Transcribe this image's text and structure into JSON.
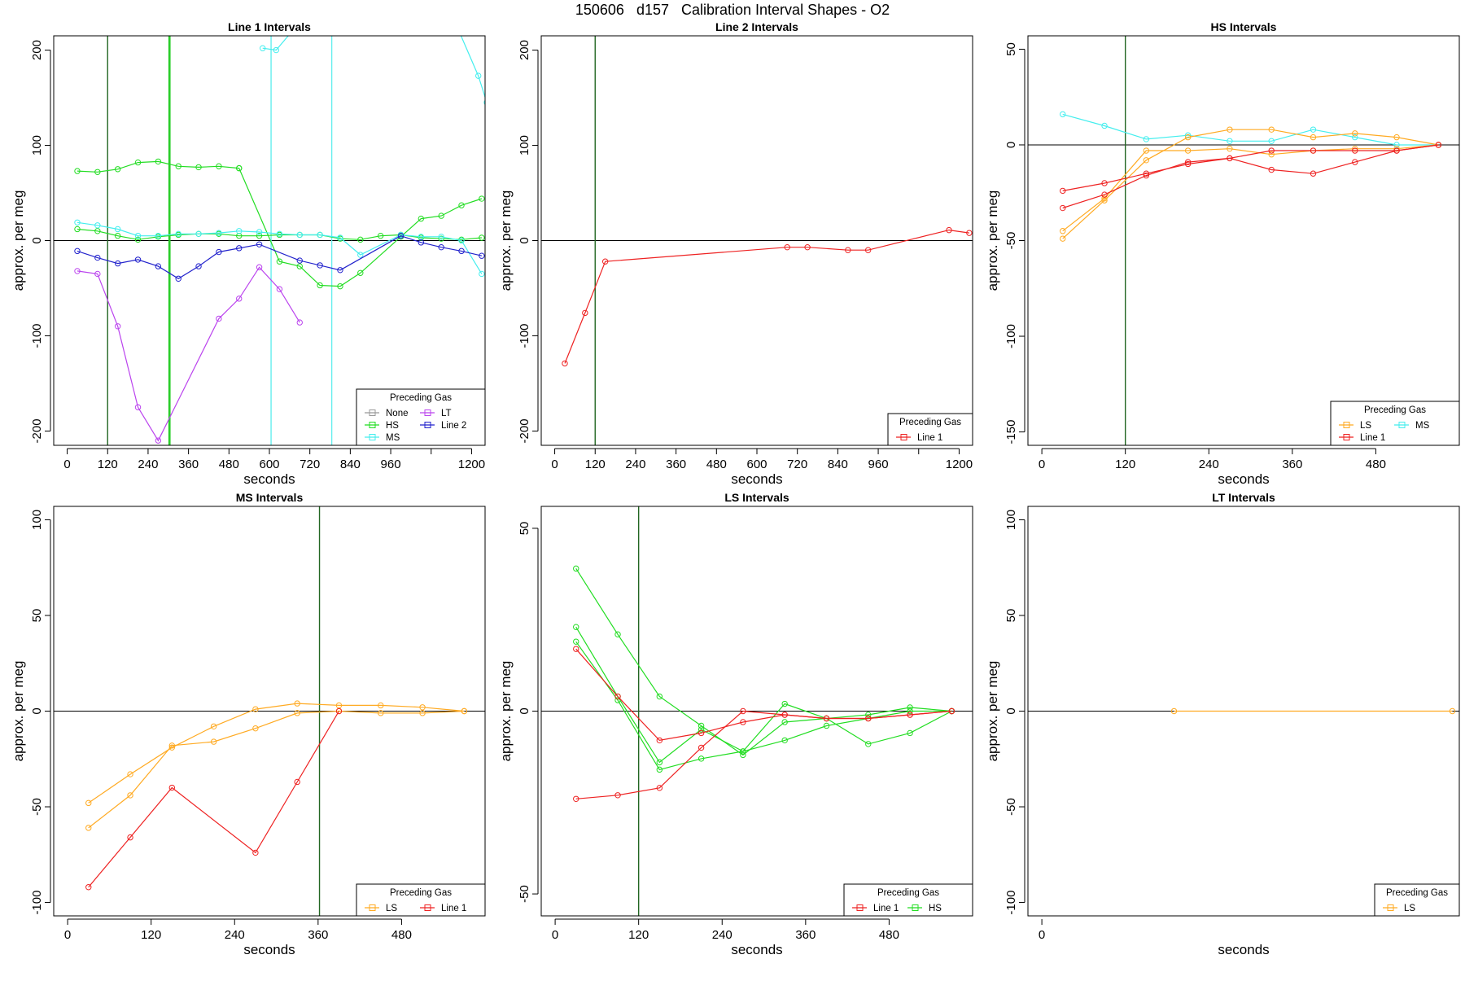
{
  "main_title": "150606   d157   Calibration Interval Shapes - O2",
  "colors": {
    "None": "#999999",
    "HS": "#22dd22",
    "MS": "#44eeee",
    "LT": "#bb44ee",
    "Line 2": "#2222cc",
    "Line 1": "#ee2222",
    "LS": "#ffaa22",
    "vline_dark": "#226622",
    "vline_green": "#22cc22",
    "vline_cyan": "#66eeee"
  },
  "chart_data": [
    {
      "type": "line",
      "title": "Line 1 Intervals",
      "xlabel": "seconds",
      "ylabel": "approx. per meg",
      "xlim": [
        -40,
        1240
      ],
      "ylim": [
        -215,
        215
      ],
      "xticks": [
        "0",
        "120",
        "240",
        "360",
        "480",
        "600",
        "720",
        "840",
        "960",
        "",
        "1200"
      ],
      "xtick_values": [
        0,
        120,
        240,
        360,
        480,
        600,
        720,
        840,
        960,
        1080,
        1200
      ],
      "yticks": [
        "-200",
        "-100",
        "0",
        "100",
        "200"
      ],
      "ytick_values": [
        -200,
        -100,
        0,
        100,
        200
      ],
      "hlines": [
        0
      ],
      "vlines": [
        {
          "x": 120,
          "color": "vline_dark"
        },
        {
          "x": 302,
          "color": "vline_green"
        },
        {
          "x": 305,
          "color": "vline_green"
        },
        {
          "x": 605,
          "color": "vline_cyan"
        },
        {
          "x": 785,
          "color": "vline_cyan"
        }
      ],
      "legend": {
        "title": "Preceding Gas",
        "position": "bottom-right",
        "columns": 2,
        "entries": [
          "None",
          "HS",
          "MS",
          "LT",
          "Line 2"
        ]
      },
      "series": [
        {
          "name": "HS",
          "x": [
            30,
            90,
            150,
            210,
            270,
            330,
            390,
            450,
            510
          ],
          "y": [
            73,
            72,
            75,
            82,
            83,
            78,
            77,
            78,
            76
          ]
        },
        {
          "name": "HS",
          "x": [
            30,
            90,
            150,
            210,
            270,
            330,
            390,
            450,
            510,
            570,
            630,
            690,
            750,
            810,
            870,
            930,
            990,
            1050,
            1110,
            1170,
            1230
          ],
          "y": [
            12,
            10,
            5,
            1,
            4,
            6,
            7,
            7,
            5,
            5,
            6,
            6,
            6,
            2,
            1,
            5,
            6,
            3,
            2,
            1,
            3
          ]
        },
        {
          "name": "HS",
          "x": [
            510,
            630,
            690,
            750,
            810,
            870,
            990,
            1050,
            1110,
            1170,
            1230
          ],
          "y": [
            76,
            -22,
            -27,
            -47,
            -48,
            -34,
            4,
            23,
            26,
            37,
            44
          ]
        },
        {
          "name": "MS",
          "x": [
            30,
            90,
            150,
            210,
            270,
            330,
            390,
            450,
            510,
            570,
            630,
            690,
            750,
            810,
            870,
            990,
            1050,
            1110,
            1170,
            1230
          ],
          "y": [
            19,
            16,
            12,
            5,
            5,
            7,
            7,
            8,
            10,
            9,
            7,
            6,
            6,
            3,
            -15,
            6,
            4,
            4,
            0,
            -35
          ]
        },
        {
          "name": "MS",
          "x": [
            580,
            620,
            680,
            740
          ],
          "y": [
            202,
            200,
            225,
            225
          ]
        },
        {
          "name": "MS",
          "x": [
            1160,
            1220,
            1245
          ],
          "y": [
            222,
            173,
            145
          ]
        },
        {
          "name": "LT",
          "x": [
            30,
            90,
            150,
            210,
            270,
            450,
            510,
            570,
            630,
            690
          ],
          "y": [
            -32,
            -35,
            -90,
            -175,
            -210,
            -82,
            -61,
            -28,
            -51,
            -86
          ]
        },
        {
          "name": "Line 2",
          "x": [
            30,
            90,
            150,
            210,
            270,
            330,
            390,
            450,
            510,
            570,
            690,
            750,
            810,
            990,
            1050,
            1110,
            1170,
            1230
          ],
          "y": [
            -11,
            -18,
            -24,
            -20,
            -27,
            -40,
            -27,
            -12,
            -8,
            -4,
            -21,
            -26,
            -31,
            5,
            -2,
            -7,
            -11,
            -16
          ]
        }
      ]
    },
    {
      "type": "line",
      "title": "Line 2 Intervals",
      "xlabel": "seconds",
      "ylabel": "approx. per meg",
      "xlim": [
        -40,
        1240
      ],
      "ylim": [
        -215,
        215
      ],
      "xticks": [
        "0",
        "120",
        "240",
        "360",
        "480",
        "600",
        "720",
        "840",
        "960",
        "",
        "1200"
      ],
      "xtick_values": [
        0,
        120,
        240,
        360,
        480,
        600,
        720,
        840,
        960,
        1080,
        1200
      ],
      "yticks": [
        "-200",
        "-100",
        "0",
        "100",
        "200"
      ],
      "ytick_values": [
        -200,
        -100,
        0,
        100,
        200
      ],
      "hlines": [
        0
      ],
      "vlines": [
        {
          "x": 120,
          "color": "vline_dark"
        }
      ],
      "legend": {
        "title": "Preceding Gas",
        "position": "bottom-right",
        "columns": 1,
        "entries": [
          "Line 1"
        ]
      },
      "series": [
        {
          "name": "Line 1",
          "x": [
            30,
            90,
            150,
            690,
            750,
            870,
            930,
            1170,
            1230
          ],
          "y": [
            -129,
            -76,
            -22,
            -7,
            -7,
            -10,
            -10,
            11,
            8
          ]
        }
      ]
    },
    {
      "type": "line",
      "title": "HS Intervals",
      "xlabel": "seconds",
      "ylabel": "approx. per meg",
      "xlim": [
        -20,
        600
      ],
      "ylim": [
        -157,
        57
      ],
      "xticks": [
        "0",
        "120",
        "240",
        "360",
        "480"
      ],
      "xtick_values": [
        0,
        120,
        240,
        360,
        480
      ],
      "yticks": [
        "-150",
        "-100",
        "-50",
        "0",
        "50"
      ],
      "ytick_values": [
        -150,
        -100,
        -50,
        0,
        50
      ],
      "hlines": [
        0
      ],
      "vlines": [
        {
          "x": 120,
          "color": "vline_dark"
        }
      ],
      "legend": {
        "title": "Preceding Gas",
        "position": "bottom-right",
        "columns": 2,
        "entries": [
          "LS",
          "Line 1",
          "MS"
        ]
      },
      "series": [
        {
          "name": "MS",
          "x": [
            30,
            90,
            150,
            210,
            270,
            330,
            390,
            450,
            510,
            570
          ],
          "y": [
            16,
            10,
            3,
            5,
            2,
            2,
            8,
            4,
            0,
            0
          ]
        },
        {
          "name": "LS",
          "x": [
            30,
            90,
            150,
            210,
            270,
            330,
            390,
            450,
            510,
            570
          ],
          "y": [
            -49,
            -29,
            -8,
            4,
            8,
            8,
            4,
            6,
            4,
            0
          ]
        },
        {
          "name": "LS",
          "x": [
            30,
            90,
            150,
            210,
            270,
            330,
            390,
            450,
            510,
            570
          ],
          "y": [
            -45,
            -28,
            -3,
            -3,
            -2,
            -5,
            -3,
            -2,
            -2,
            0
          ]
        },
        {
          "name": "Line 1",
          "x": [
            30,
            90,
            150,
            210,
            270,
            330,
            390,
            450,
            510,
            570
          ],
          "y": [
            -24,
            -20,
            -15,
            -10,
            -7,
            -3,
            -3,
            -3,
            -3,
            0
          ]
        },
        {
          "name": "Line 1",
          "x": [
            30,
            90,
            150,
            210,
            270,
            330,
            390,
            450,
            510,
            570
          ],
          "y": [
            -33,
            -26,
            -16,
            -9,
            -7,
            -13,
            -15,
            -9,
            -3,
            0
          ]
        }
      ]
    },
    {
      "type": "line",
      "title": "MS Intervals",
      "xlabel": "seconds",
      "ylabel": "approx. per meg",
      "xlim": [
        -20,
        600
      ],
      "ylim": [
        -107,
        107
      ],
      "xticks": [
        "0",
        "120",
        "240",
        "360",
        "480"
      ],
      "xtick_values": [
        0,
        120,
        240,
        360,
        480
      ],
      "yticks": [
        "-100",
        "-50",
        "0",
        "50",
        "100"
      ],
      "ytick_values": [
        -100,
        -50,
        0,
        50,
        100
      ],
      "hlines": [
        0
      ],
      "vlines": [
        {
          "x": 362,
          "color": "vline_dark"
        }
      ],
      "legend": {
        "title": "Preceding Gas",
        "position": "bottom-right",
        "columns": 2,
        "entries": [
          "LS",
          "Line 1"
        ]
      },
      "series": [
        {
          "name": "LS",
          "x": [
            30,
            90,
            150,
            210,
            270,
            330,
            390,
            450,
            510,
            570
          ],
          "y": [
            -48,
            -33,
            -19,
            -8,
            1,
            4,
            3,
            3,
            2,
            0
          ]
        },
        {
          "name": "LS",
          "x": [
            30,
            90,
            150,
            210,
            270,
            330,
            390,
            450,
            510,
            570
          ],
          "y": [
            -61,
            -44,
            -18,
            -16,
            -9,
            -1,
            0,
            -1,
            -1,
            0
          ]
        },
        {
          "name": "Line 1",
          "x": [
            30,
            90,
            150,
            270,
            330,
            390
          ],
          "y": [
            -92,
            -66,
            -40,
            -74,
            -37,
            0
          ]
        }
      ]
    },
    {
      "type": "line",
      "title": "LS Intervals",
      "xlabel": "seconds",
      "ylabel": "approx. per meg",
      "xlim": [
        -20,
        600
      ],
      "ylim": [
        -56,
        56
      ],
      "xticks": [
        "0",
        "120",
        "240",
        "360",
        "480"
      ],
      "xtick_values": [
        0,
        120,
        240,
        360,
        480
      ],
      "yticks": [
        "-50",
        "0",
        "50"
      ],
      "ytick_values": [
        -50,
        0,
        50
      ],
      "hlines": [
        0
      ],
      "vlines": [
        {
          "x": 120,
          "color": "vline_dark"
        }
      ],
      "legend": {
        "title": "Preceding Gas",
        "position": "bottom-right",
        "columns": 2,
        "entries": [
          "Line 1",
          "HS"
        ]
      },
      "series": [
        {
          "name": "HS",
          "x": [
            30,
            90,
            150,
            210,
            270,
            330,
            390,
            450,
            510,
            570
          ],
          "y": [
            39,
            21,
            4,
            -4,
            -12,
            -3,
            -2,
            -1,
            1,
            0
          ]
        },
        {
          "name": "HS",
          "x": [
            30,
            90,
            150,
            210,
            270,
            330,
            390,
            450,
            510,
            570
          ],
          "y": [
            23,
            4,
            -14,
            -5,
            -11,
            2,
            -2,
            -9,
            -6,
            0
          ]
        },
        {
          "name": "HS",
          "x": [
            30,
            90,
            150,
            210,
            270,
            330,
            390,
            450,
            510,
            570
          ],
          "y": [
            19,
            3,
            -16,
            -13,
            -11,
            -8,
            -4,
            -2,
            0,
            0
          ]
        },
        {
          "name": "Line 1",
          "x": [
            30,
            90,
            150,
            210,
            270,
            330,
            390,
            450,
            510,
            570
          ],
          "y": [
            -24,
            -23,
            -21,
            -10,
            0,
            -1,
            -2,
            -2,
            -1,
            0
          ]
        },
        {
          "name": "Line 1",
          "x": [
            30,
            90,
            150,
            210,
            270,
            330,
            390,
            450,
            510,
            570
          ],
          "y": [
            17,
            4,
            -8,
            -6,
            -3,
            -1,
            -2,
            -2,
            -1,
            0
          ]
        }
      ]
    },
    {
      "type": "line",
      "title": "LT Intervals",
      "xlabel": "seconds",
      "ylabel": "approx. per meg",
      "xlim": [
        -20,
        600
      ],
      "ylim": [
        -107,
        107
      ],
      "xticks": [
        "0"
      ],
      "xtick_values": [
        0
      ],
      "yticks": [
        "-100",
        "-50",
        "0",
        "50",
        "100"
      ],
      "ytick_values": [
        -100,
        -50,
        0,
        50,
        100
      ],
      "hlines": [
        0
      ],
      "vlines": [],
      "legend": {
        "title": "Preceding Gas",
        "position": "bottom-right",
        "columns": 1,
        "entries": [
          "LS"
        ]
      },
      "series": [
        {
          "name": "LS",
          "x": [
            190,
            590
          ],
          "y": [
            0,
            0
          ]
        }
      ]
    }
  ]
}
